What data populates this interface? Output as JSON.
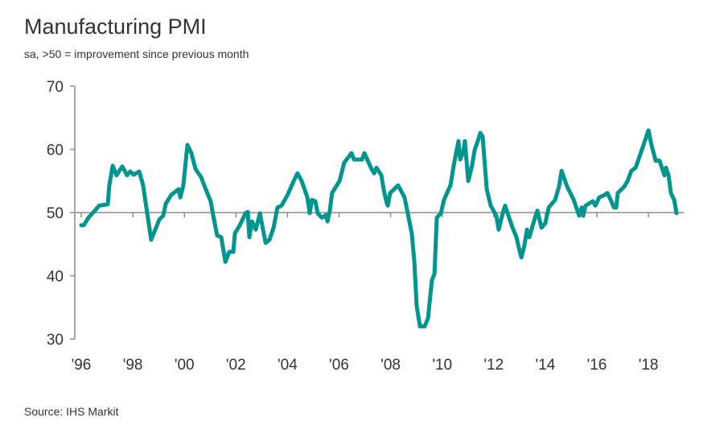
{
  "chart_data": {
    "type": "line",
    "title": "Manufacturing PMI",
    "subtitle": "sa, >50 = improvement since previous month",
    "source": "Source: IHS Markit",
    "xlabel": "",
    "ylabel": "",
    "ylim": [
      30,
      70
    ],
    "xlim": [
      1996,
      2019.1
    ],
    "y_ticks": [
      "30",
      "40",
      "50",
      "60",
      "70"
    ],
    "x_ticks": [
      {
        "year": 1996,
        "label": "'96"
      },
      {
        "year": 1998,
        "label": "'98"
      },
      {
        "year": 2000,
        "label": "'00"
      },
      {
        "year": 2002,
        "label": "'02"
      },
      {
        "year": 2004,
        "label": "'04"
      },
      {
        "year": 2006,
        "label": "'06"
      },
      {
        "year": 2008,
        "label": "'08"
      },
      {
        "year": 2010,
        "label": "'10"
      },
      {
        "year": 2012,
        "label": "'12"
      },
      {
        "year": 2014,
        "label": "'14"
      },
      {
        "year": 2016,
        "label": "'16"
      },
      {
        "year": 2018,
        "label": "'18"
      }
    ],
    "reference_line": 50,
    "grid": false,
    "line_color": "#00968f",
    "axis_color": "#8c8c8c",
    "series": [
      {
        "points": [
          [
            1996.0,
            48.0
          ],
          [
            1996.1,
            48.0
          ],
          [
            1996.28,
            49.2
          ],
          [
            1996.53,
            50.3
          ],
          [
            1996.69,
            51.1
          ],
          [
            1997.03,
            51.3
          ],
          [
            1997.09,
            54.3
          ],
          [
            1997.22,
            57.4
          ],
          [
            1997.37,
            55.9
          ],
          [
            1997.59,
            57.3
          ],
          [
            1997.78,
            55.9
          ],
          [
            1997.9,
            56.5
          ],
          [
            1998.03,
            56.0
          ],
          [
            1998.25,
            56.5
          ],
          [
            1998.4,
            54.3
          ],
          [
            1998.56,
            49.9
          ],
          [
            1998.71,
            45.7
          ],
          [
            1998.87,
            47.3
          ],
          [
            1999.03,
            48.9
          ],
          [
            1999.18,
            49.5
          ],
          [
            1999.28,
            51.4
          ],
          [
            1999.49,
            52.8
          ],
          [
            1999.78,
            53.7
          ],
          [
            1999.84,
            52.4
          ],
          [
            1999.96,
            54.3
          ],
          [
            2000.12,
            60.7
          ],
          [
            2000.27,
            59.4
          ],
          [
            2000.43,
            56.9
          ],
          [
            2000.65,
            55.6
          ],
          [
            2000.8,
            54.0
          ],
          [
            2001.02,
            51.8
          ],
          [
            2001.12,
            49.5
          ],
          [
            2001.27,
            46.4
          ],
          [
            2001.43,
            46.1
          ],
          [
            2001.59,
            42.2
          ],
          [
            2001.74,
            43.8
          ],
          [
            2001.9,
            43.8
          ],
          [
            2001.96,
            46.7
          ],
          [
            2002.15,
            48.0
          ],
          [
            2002.37,
            49.9
          ],
          [
            2002.46,
            50.1
          ],
          [
            2002.52,
            46.1
          ],
          [
            2002.62,
            48.6
          ],
          [
            2002.77,
            47.3
          ],
          [
            2002.93,
            49.9
          ],
          [
            2003.15,
            45.2
          ],
          [
            2003.3,
            45.7
          ],
          [
            2003.46,
            47.6
          ],
          [
            2003.61,
            50.8
          ],
          [
            2003.77,
            51.1
          ],
          [
            2003.99,
            52.7
          ],
          [
            2004.24,
            55.0
          ],
          [
            2004.39,
            56.2
          ],
          [
            2004.55,
            55.0
          ],
          [
            2004.77,
            52.4
          ],
          [
            2004.86,
            49.9
          ],
          [
            2004.95,
            52.0
          ],
          [
            2005.08,
            51.8
          ],
          [
            2005.17,
            49.9
          ],
          [
            2005.33,
            49.2
          ],
          [
            2005.49,
            49.6
          ],
          [
            2005.55,
            48.6
          ],
          [
            2005.64,
            50.3
          ],
          [
            2005.73,
            53.1
          ],
          [
            2006.02,
            55.0
          ],
          [
            2006.2,
            57.9
          ],
          [
            2006.48,
            59.4
          ],
          [
            2006.58,
            58.4
          ],
          [
            2006.89,
            58.4
          ],
          [
            2006.98,
            59.4
          ],
          [
            2007.26,
            56.9
          ],
          [
            2007.36,
            56.2
          ],
          [
            2007.45,
            57.1
          ],
          [
            2007.64,
            55.9
          ],
          [
            2007.73,
            53.7
          ],
          [
            2007.83,
            51.8
          ],
          [
            2007.89,
            51.1
          ],
          [
            2007.98,
            53.1
          ],
          [
            2008.29,
            54.3
          ],
          [
            2008.45,
            53.1
          ],
          [
            2008.54,
            52.4
          ],
          [
            2008.7,
            49.2
          ],
          [
            2008.82,
            46.7
          ],
          [
            2008.92,
            42.2
          ],
          [
            2009.01,
            35.2
          ],
          [
            2009.14,
            32.0
          ],
          [
            2009.32,
            32.0
          ],
          [
            2009.45,
            33.3
          ],
          [
            2009.6,
            39.3
          ],
          [
            2009.7,
            40.3
          ],
          [
            2009.79,
            49.2
          ],
          [
            2009.95,
            49.9
          ],
          [
            2010.07,
            52.0
          ],
          [
            2010.32,
            54.3
          ],
          [
            2010.45,
            57.5
          ],
          [
            2010.63,
            61.3
          ],
          [
            2010.7,
            58.4
          ],
          [
            2010.82,
            59.7
          ],
          [
            2010.88,
            61.3
          ],
          [
            2011.01,
            55.0
          ],
          [
            2011.16,
            57.5
          ],
          [
            2011.26,
            59.9
          ],
          [
            2011.38,
            61.3
          ],
          [
            2011.48,
            62.6
          ],
          [
            2011.57,
            62.0
          ],
          [
            2011.73,
            53.7
          ],
          [
            2011.88,
            51.1
          ],
          [
            2012.1,
            49.5
          ],
          [
            2012.19,
            47.3
          ],
          [
            2012.35,
            49.9
          ],
          [
            2012.44,
            51.1
          ],
          [
            2012.57,
            49.5
          ],
          [
            2012.72,
            47.7
          ],
          [
            2012.88,
            46.1
          ],
          [
            2012.97,
            44.5
          ],
          [
            2013.07,
            42.9
          ],
          [
            2013.19,
            44.8
          ],
          [
            2013.29,
            47.3
          ],
          [
            2013.38,
            46.1
          ],
          [
            2013.6,
            49.2
          ],
          [
            2013.69,
            50.3
          ],
          [
            2013.85,
            47.6
          ],
          [
            2014.0,
            48.3
          ],
          [
            2014.13,
            50.8
          ],
          [
            2014.38,
            52.0
          ],
          [
            2014.53,
            54.1
          ],
          [
            2014.63,
            56.6
          ],
          [
            2014.85,
            54.1
          ],
          [
            2015.1,
            52.0
          ],
          [
            2015.31,
            49.5
          ],
          [
            2015.41,
            50.8
          ],
          [
            2015.47,
            49.5
          ],
          [
            2015.56,
            51.1
          ],
          [
            2015.84,
            51.8
          ],
          [
            2015.94,
            51.1
          ],
          [
            2016.09,
            52.4
          ],
          [
            2016.31,
            52.8
          ],
          [
            2016.41,
            53.1
          ],
          [
            2016.56,
            51.8
          ],
          [
            2016.66,
            50.8
          ],
          [
            2016.75,
            50.8
          ],
          [
            2016.81,
            53.1
          ],
          [
            2017.06,
            54.1
          ],
          [
            2017.19,
            55.0
          ],
          [
            2017.34,
            56.6
          ],
          [
            2017.5,
            57.1
          ],
          [
            2017.65,
            58.8
          ],
          [
            2017.81,
            60.7
          ],
          [
            2018.0,
            63.0
          ],
          [
            2018.12,
            60.7
          ],
          [
            2018.28,
            58.2
          ],
          [
            2018.43,
            58.2
          ],
          [
            2018.62,
            55.9
          ],
          [
            2018.68,
            57.1
          ],
          [
            2018.78,
            55.9
          ],
          [
            2018.87,
            53.1
          ],
          [
            2019.0,
            52.0
          ],
          [
            2019.09,
            49.9
          ]
        ]
      }
    ]
  }
}
